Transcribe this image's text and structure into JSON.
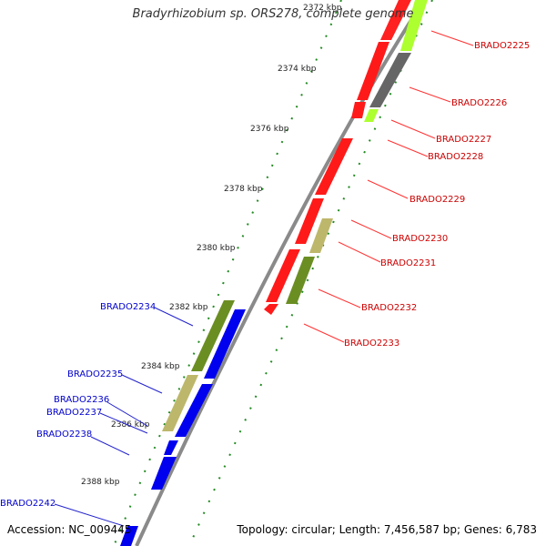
{
  "title": "Bradyrhizobium sp. ORS278, complete genome",
  "footer": {
    "accession": "Accession: NC_009445",
    "topology": "Topology: circular; Length: 7,456,587 bp; Genes: 6,783"
  },
  "ticks": [
    "2372 kbp",
    "2374 kbp",
    "2376 kbp",
    "2378 kbp",
    "2380 kbp",
    "2382 kbp",
    "2384 kbp",
    "2386 kbp",
    "2388 kbp"
  ],
  "genes_forward": [
    "BRADO2225",
    "BRADO2226",
    "BRADO2227",
    "BRADO2228",
    "BRADO2229",
    "BRADO2230",
    "BRADO2231",
    "BRADO2232",
    "BRADO2233"
  ],
  "genes_reverse": [
    "BRADO2234",
    "BRADO2235",
    "BRADO2236",
    "BRADO2237",
    "BRADO2238",
    "BRADO2242"
  ],
  "colors": {
    "forward_label": "#cc0000",
    "reverse_label": "#0000cc",
    "forward_gene": "#ff0000",
    "reverse_gene": "#0000ee",
    "olive": "#6b8e23",
    "khaki": "#bdb76b",
    "gray": "#666666",
    "lime": "#adff2f",
    "dots": "#228b22",
    "backbone": "#888888"
  }
}
